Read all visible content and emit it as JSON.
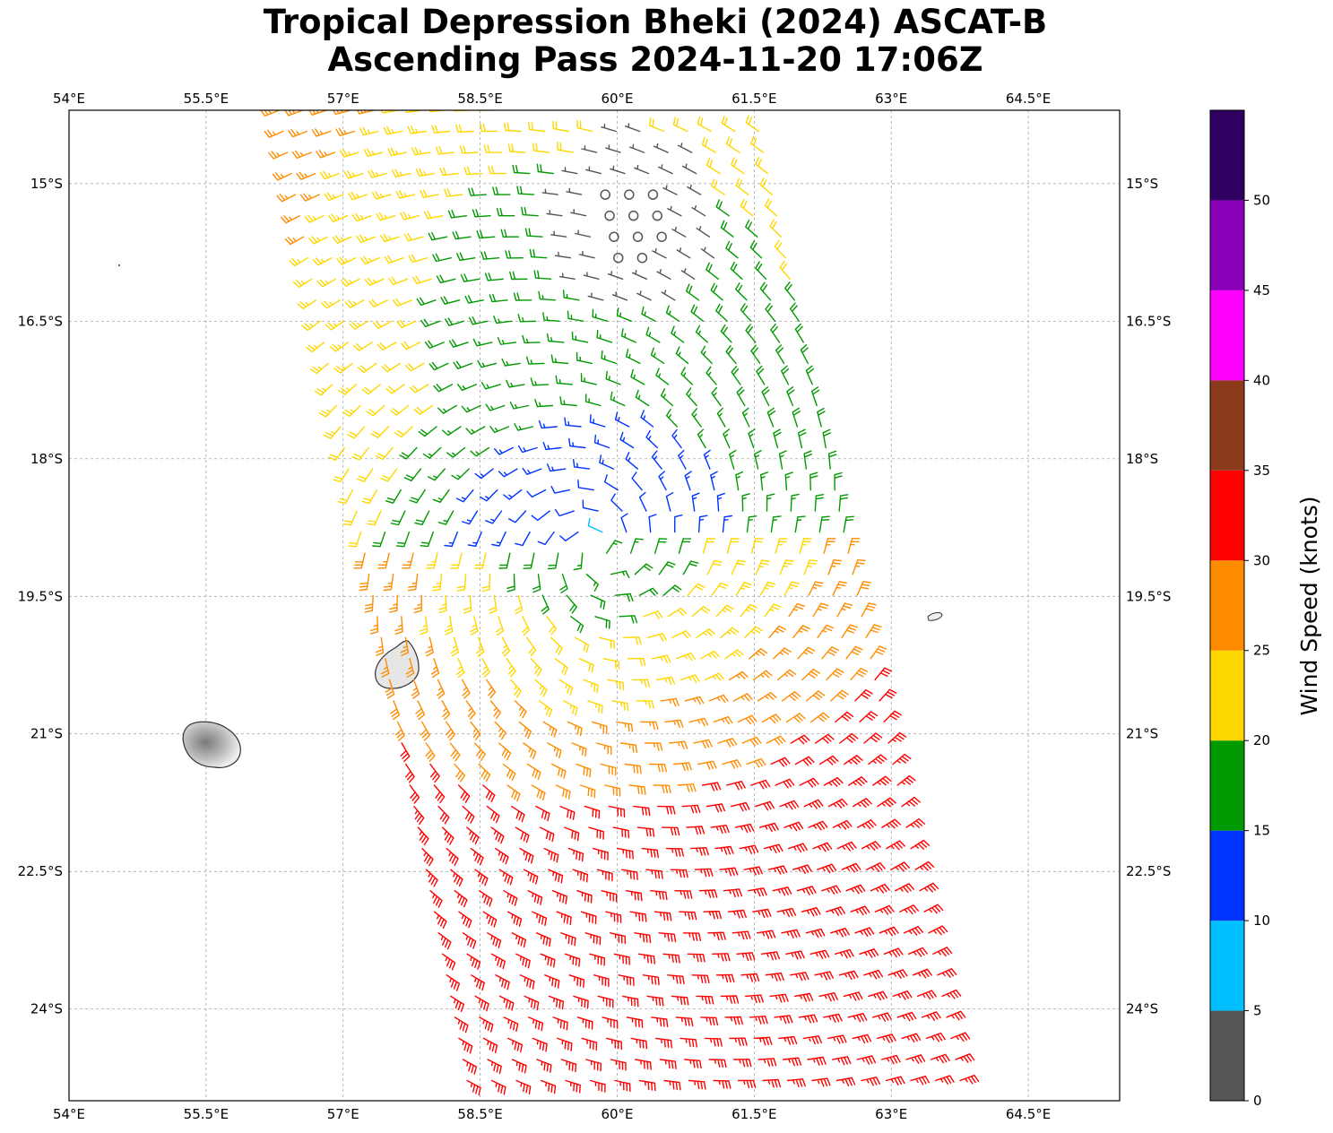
{
  "title": {
    "line1": "Tropical Depression Bheki (2024) ASCAT-B",
    "line2": "Ascending Pass 2024-11-20 17:06Z"
  },
  "chart_data": {
    "type": "wind_barbs_map",
    "extent": {
      "lon": [
        54.0,
        65.5
      ],
      "lat": [
        -25.0,
        -14.2
      ]
    },
    "x_ticks": [
      {
        "lon": 54.0,
        "label": "54°E"
      },
      {
        "lon": 55.5,
        "label": "55.5°E"
      },
      {
        "lon": 57.0,
        "label": "57°E"
      },
      {
        "lon": 58.5,
        "label": "58.5°E"
      },
      {
        "lon": 60.0,
        "label": "60°E"
      },
      {
        "lon": 61.5,
        "label": "61.5°E"
      },
      {
        "lon": 63.0,
        "label": "63°E"
      },
      {
        "lon": 64.5,
        "label": "64.5°E"
      }
    ],
    "y_ticks": [
      {
        "lat": -15.0,
        "label": "15°S"
      },
      {
        "lat": -16.5,
        "label": "16.5°S"
      },
      {
        "lat": -18.0,
        "label": "18°S"
      },
      {
        "lat": -19.5,
        "label": "19.5°S"
      },
      {
        "lat": -21.0,
        "label": "21°S"
      },
      {
        "lat": -22.5,
        "label": "22.5°S"
      },
      {
        "lat": -24.0,
        "label": "24°S"
      }
    ],
    "grid": true,
    "circulation_center": {
      "lon": 59.8,
      "lat": -19.0
    },
    "calm_center": {
      "lon": 60.2,
      "lat": -15.4
    },
    "swath": {
      "top_lon": [
        56.3,
        61.5
      ],
      "bottom_lon": [
        58.4,
        63.8
      ]
    },
    "colorbar": {
      "label": "Wind Speed (knots)",
      "bounds": [
        0,
        5,
        10,
        15,
        20,
        25,
        30,
        35,
        40,
        45,
        50,
        55
      ],
      "tick_labels": [
        "0",
        "5",
        "10",
        "15",
        "20",
        "25",
        "30",
        "35",
        "40",
        "45",
        "50"
      ],
      "colors": [
        "#555555",
        "#00bfff",
        "#0033ff",
        "#009900",
        "#ffd700",
        "#ff8c00",
        "#ff0000",
        "#8b3a1a",
        "#ff00ff",
        "#8a00b8",
        "#2e0060"
      ]
    }
  }
}
